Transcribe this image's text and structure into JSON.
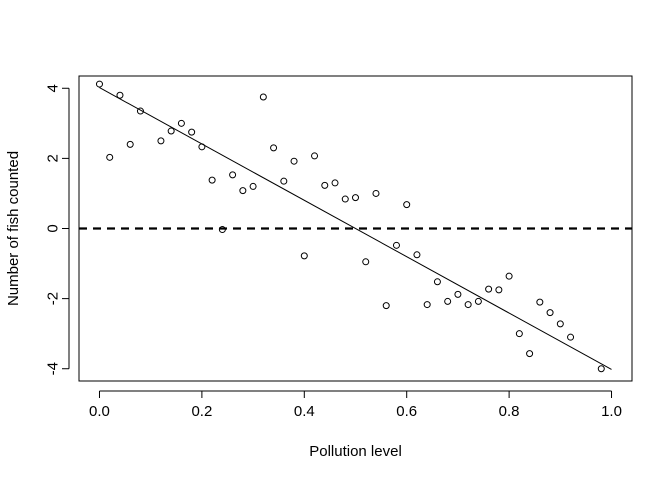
{
  "chart_data": {
    "type": "scatter",
    "title": "",
    "xlabel": "Pollution level",
    "ylabel": "Number of fish counted",
    "xlim": [
      -0.04,
      1.04
    ],
    "ylim": [
      -4.35,
      4.35
    ],
    "xticks": [
      0.0,
      0.2,
      0.4,
      0.6,
      0.8,
      1.0
    ],
    "xtick_labels": [
      "0.0",
      "0.2",
      "0.4",
      "0.6",
      "0.8",
      "1.0"
    ],
    "yticks": [
      -4,
      -2,
      0,
      2,
      4
    ],
    "ytick_labels": [
      "-4",
      "-2",
      "0",
      "2",
      "4"
    ],
    "grid": false,
    "legend": "none",
    "series": [
      {
        "points": [
          [
            0.0,
            4.12
          ],
          [
            0.02,
            2.03
          ],
          [
            0.04,
            3.8
          ],
          [
            0.06,
            2.4
          ],
          [
            0.08,
            3.35
          ],
          [
            0.12,
            2.5
          ],
          [
            0.14,
            2.78
          ],
          [
            0.16,
            3.0
          ],
          [
            0.18,
            2.75
          ],
          [
            0.2,
            2.33
          ],
          [
            0.22,
            1.38
          ],
          [
            0.24,
            -0.03
          ],
          [
            0.26,
            1.53
          ],
          [
            0.28,
            1.08
          ],
          [
            0.3,
            1.2
          ],
          [
            0.32,
            3.75
          ],
          [
            0.34,
            2.3
          ],
          [
            0.36,
            1.35
          ],
          [
            0.38,
            1.92
          ],
          [
            0.4,
            -0.78
          ],
          [
            0.42,
            2.07
          ],
          [
            0.44,
            1.23
          ],
          [
            0.46,
            1.3
          ],
          [
            0.48,
            0.84
          ],
          [
            0.5,
            0.88
          ],
          [
            0.52,
            -0.95
          ],
          [
            0.54,
            1.0
          ],
          [
            0.56,
            -2.2
          ],
          [
            0.58,
            -0.48
          ],
          [
            0.6,
            0.68
          ],
          [
            0.62,
            -0.75
          ],
          [
            0.64,
            -2.17
          ],
          [
            0.66,
            -1.52
          ],
          [
            0.68,
            -2.08
          ],
          [
            0.7,
            -1.88
          ],
          [
            0.72,
            -2.17
          ],
          [
            0.74,
            -2.08
          ],
          [
            0.76,
            -1.73
          ],
          [
            0.78,
            -1.75
          ],
          [
            0.8,
            -1.36
          ],
          [
            0.82,
            -3.0
          ],
          [
            0.84,
            -3.57
          ],
          [
            0.86,
            -2.1
          ],
          [
            0.88,
            -2.4
          ],
          [
            0.9,
            -2.72
          ],
          [
            0.92,
            -3.1
          ],
          [
            0.98,
            -4.0
          ]
        ]
      }
    ],
    "fit_line": {
      "x": [
        0.0,
        1.0
      ],
      "y": [
        4.02,
        -4.02
      ]
    },
    "reference_line": {
      "y": 0,
      "style": "dashed"
    },
    "colors": {
      "points": "#000000",
      "lines": "#000000",
      "background": "#ffffff"
    }
  }
}
